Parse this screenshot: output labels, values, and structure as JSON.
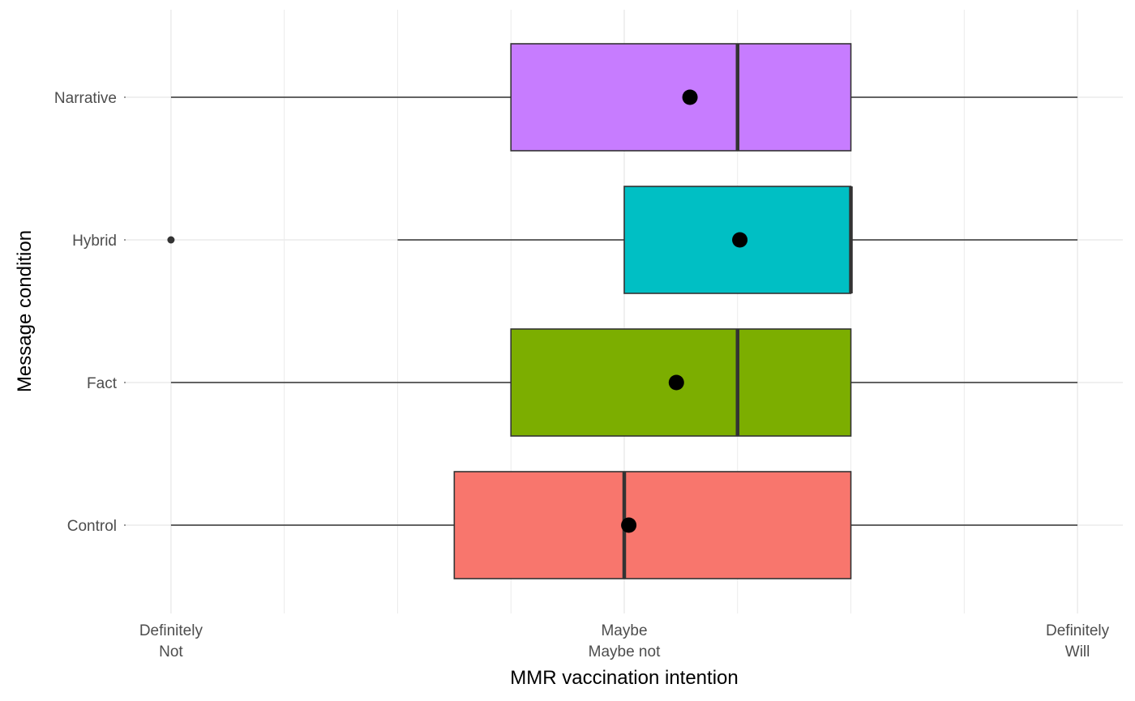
{
  "chart_data": {
    "type": "boxplot",
    "orientation": "horizontal",
    "xlabel": "MMR vaccination intention",
    "ylabel": "Message condition",
    "xlim": [
      0.8,
      5.2
    ],
    "x_ticks": [
      {
        "value": 1,
        "lines": [
          "Definitely",
          "Not"
        ]
      },
      {
        "value": 3,
        "lines": [
          "Maybe",
          "Maybe not"
        ]
      },
      {
        "value": 5,
        "lines": [
          "Definitely",
          "Will"
        ]
      }
    ],
    "x_minor_gridlines": [
      1.5,
      2,
      2.5,
      3.5,
      4,
      4.5
    ],
    "categories": [
      "Control",
      "Fact",
      "Hybrid",
      "Narrative"
    ],
    "boxes": [
      {
        "category": "Control",
        "fill": "#F8766D",
        "whisker_low": 1,
        "q1": 2.25,
        "median": 3,
        "q3": 4,
        "whisker_high": 5,
        "mean": 3.02,
        "outliers": []
      },
      {
        "category": "Fact",
        "fill": "#7CAE00",
        "whisker_low": 1,
        "q1": 2.5,
        "median": 3.5,
        "q3": 4,
        "whisker_high": 5,
        "mean": 3.23,
        "outliers": []
      },
      {
        "category": "Hybrid",
        "fill": "#00BFC4",
        "whisker_low": 2,
        "q1": 3,
        "median": 4,
        "q3": 4,
        "whisker_high": 5,
        "mean": 3.51,
        "outliers": [
          1
        ]
      },
      {
        "category": "Narrative",
        "fill": "#C77CFF",
        "whisker_low": 1,
        "q1": 2.5,
        "median": 3.5,
        "q3": 4,
        "whisker_high": 5,
        "mean": 3.29,
        "outliers": []
      }
    ],
    "grid": true,
    "legend": "none"
  }
}
